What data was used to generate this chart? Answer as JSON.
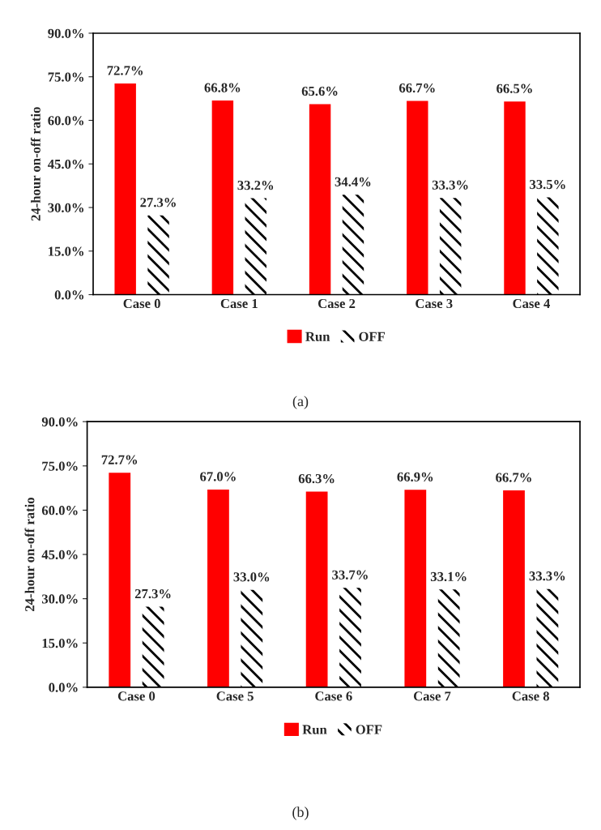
{
  "chart_data": [
    {
      "type": "bar",
      "ylabel": "24-hour on-off ratio",
      "categories": [
        "Case 0",
        "Case 1",
        "Case 2",
        "Case 3",
        "Case 4"
      ],
      "series": [
        {
          "name": "Run",
          "color": "#ff0000",
          "values": [
            72.7,
            66.8,
            65.6,
            66.7,
            66.5
          ],
          "value_labels": [
            "72.7%",
            "66.8%",
            "65.6%",
            "66.7%",
            "66.5%"
          ]
        },
        {
          "name": "OFF",
          "color": "#000000",
          "values": [
            27.3,
            33.2,
            34.4,
            33.3,
            33.5
          ],
          "value_labels": [
            "27.3%",
            "33.2%",
            "34.4%",
            "33.3%",
            "33.5%"
          ]
        }
      ],
      "ylim": [
        0,
        90
      ],
      "yticks": [
        {
          "value": 0,
          "label": "0.0%"
        },
        {
          "value": 15,
          "label": "15.0%"
        },
        {
          "value": 30,
          "label": "30.0%"
        },
        {
          "value": 45,
          "label": "45.0%"
        },
        {
          "value": 60,
          "label": "60.0%"
        },
        {
          "value": 75,
          "label": "75.0%"
        },
        {
          "value": 90,
          "label": "90.0%"
        }
      ],
      "legend": "bottom",
      "grid": false,
      "annotations": [
        "(a)"
      ]
    },
    {
      "type": "bar",
      "ylabel": "24-hour on-off ratio",
      "categories": [
        "Case 0",
        "Case 5",
        "Case 6",
        "Case 7",
        "Case 8"
      ],
      "series": [
        {
          "name": "Run",
          "color": "#ff0000",
          "values": [
            72.7,
            67.0,
            66.3,
            66.9,
            66.7
          ],
          "value_labels": [
            "72.7%",
            "67.0%",
            "66.3%",
            "66.9%",
            "66.7%"
          ]
        },
        {
          "name": "OFF",
          "color": "#000000",
          "values": [
            27.3,
            33.0,
            33.7,
            33.1,
            33.3
          ],
          "value_labels": [
            "27.3%",
            "33.0%",
            "33.7%",
            "33.1%",
            "33.3%"
          ]
        }
      ],
      "ylim": [
        0,
        90
      ],
      "yticks": [
        {
          "value": 0,
          "label": "0.0%"
        },
        {
          "value": 15,
          "label": "15.0%"
        },
        {
          "value": 30,
          "label": "30.0%"
        },
        {
          "value": 45,
          "label": "45.0%"
        },
        {
          "value": 60,
          "label": "60.0%"
        },
        {
          "value": 75,
          "label": "75.0%"
        },
        {
          "value": 90,
          "label": "90.0%"
        }
      ],
      "legend": "bottom",
      "grid": false,
      "annotations": [
        "(b)"
      ]
    }
  ]
}
